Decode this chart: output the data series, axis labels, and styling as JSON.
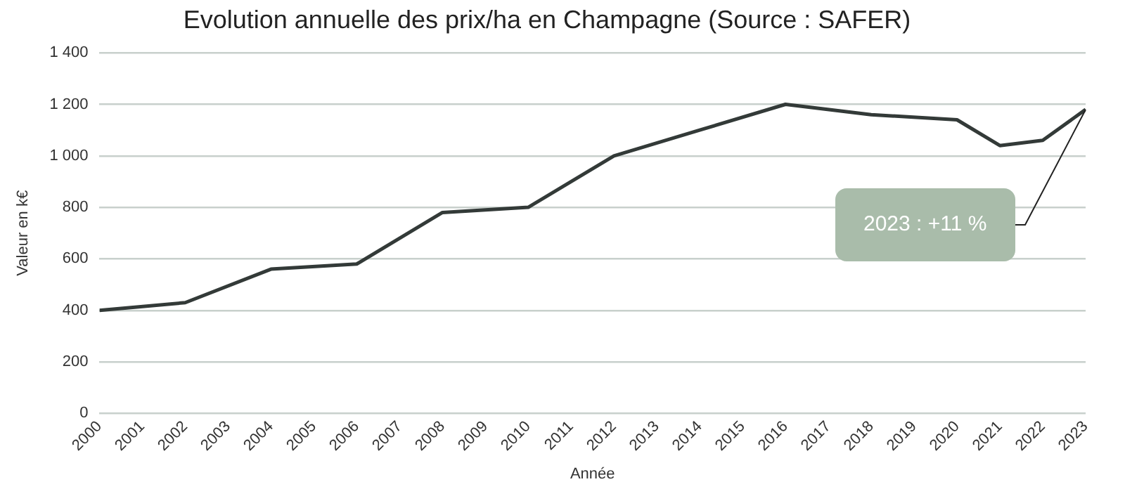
{
  "chart_data": {
    "type": "line",
    "title": "Evolution annuelle des prix/ha en Champagne (Source : SAFER)",
    "xlabel": "Année",
    "ylabel": "Valeur en k€",
    "x": [
      2000,
      2002,
      2004,
      2006,
      2008,
      2010,
      2012,
      2014,
      2016,
      2018,
      2020,
      2021,
      2022,
      2023
    ],
    "series": [
      {
        "color": "#333a38",
        "values": [
          400,
          430,
          560,
          580,
          780,
          800,
          1000,
          1100,
          1200,
          1160,
          1140,
          1040,
          1060,
          1180
        ]
      }
    ],
    "xlim": [
      2000,
      2023
    ],
    "xticks": [
      2000,
      2001,
      2002,
      2003,
      2004,
      2005,
      2006,
      2007,
      2008,
      2009,
      2010,
      2011,
      2012,
      2013,
      2014,
      2015,
      2016,
      2017,
      2018,
      2019,
      2020,
      2021,
      2022,
      2023
    ],
    "ylim": [
      0,
      1400
    ],
    "yticks": [
      0,
      200,
      400,
      600,
      800,
      {
        "value": 1000,
        "label": "1 000"
      },
      {
        "value": 1200,
        "label": "1 200"
      },
      {
        "value": 1400,
        "label": "1 400"
      }
    ],
    "grid": "y",
    "legend": false,
    "marker": "none",
    "line_style": "solid",
    "annotations": [
      "2023 : +11 %"
    ]
  }
}
